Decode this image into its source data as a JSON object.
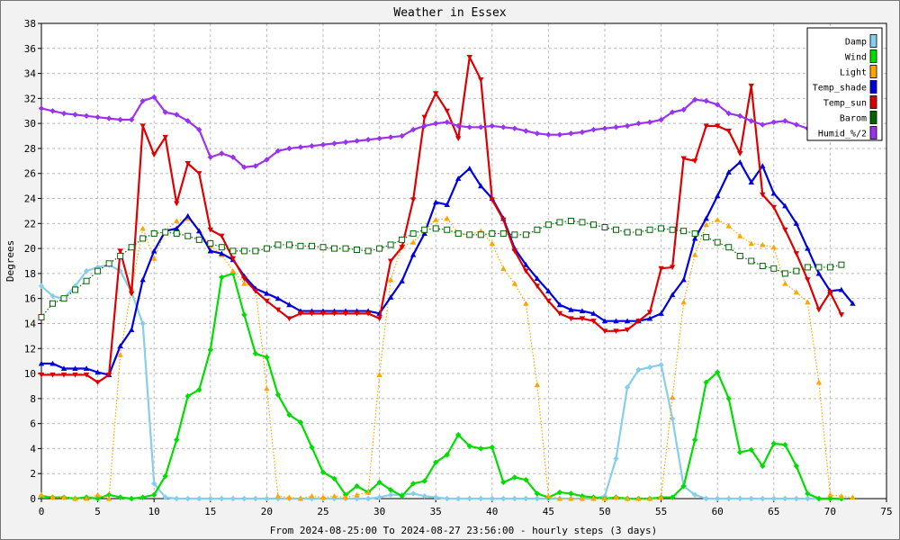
{
  "chart_data": {
    "type": "line",
    "title": "Weather in Essex",
    "xlabel": "From 2024-08-25:00 To 2024-08-27 23:56:00 - hourly steps (3 days)",
    "ylabel": "Degrees",
    "xlim": [
      0,
      75
    ],
    "ylim": [
      0,
      38
    ],
    "x_ticks": [
      0,
      5,
      10,
      15,
      20,
      25,
      30,
      35,
      40,
      45,
      50,
      55,
      60,
      65,
      70,
      75
    ],
    "y_ticks": [
      0,
      2,
      4,
      6,
      8,
      10,
      12,
      14,
      16,
      18,
      20,
      22,
      24,
      26,
      28,
      30,
      32,
      34,
      36,
      38
    ],
    "grid": true,
    "legend_position": "top-right",
    "series": [
      {
        "name": "Damp",
        "color": "#87ceeb",
        "marker": "diamond",
        "style": "solid",
        "values": [
          17.0,
          16.2,
          16.0,
          17.0,
          18.2,
          18.5,
          18.7,
          18.2,
          16.5,
          14.0,
          1.2,
          0.1,
          0,
          0,
          0,
          0,
          0,
          0,
          0,
          0,
          0,
          0,
          0,
          0,
          0,
          0,
          0,
          0,
          0,
          0,
          0.1,
          0.3,
          0.3,
          0.4,
          0.2,
          0.1,
          0,
          0,
          0,
          0,
          0,
          0,
          0,
          0,
          0,
          0,
          0,
          0,
          0,
          0,
          0.2,
          3.2,
          8.9,
          10.3,
          10.5,
          10.7,
          6.4,
          1.0,
          0.3,
          0,
          0,
          0,
          0,
          0,
          0,
          0,
          0,
          0,
          0,
          0,
          0,
          0
        ]
      },
      {
        "name": "Wind",
        "color": "#00dd00",
        "marker": "diamond",
        "style": "solid",
        "values": [
          0.2,
          0.1,
          0.1,
          0,
          0.1,
          0,
          0.3,
          0.1,
          0,
          0.1,
          0.3,
          1.8,
          4.7,
          8.2,
          8.7,
          11.9,
          17.7,
          18.0,
          14.7,
          11.6,
          11.3,
          8.3,
          6.7,
          6.1,
          4.1,
          2.1,
          1.6,
          0.3,
          1.0,
          0.5,
          1.3,
          0.7,
          0.2,
          1.2,
          1.4,
          2.9,
          3.5,
          5.1,
          4.2,
          4.0,
          4.1,
          1.3,
          1.7,
          1.5,
          0.4,
          0.1,
          0.5,
          0.4,
          0.2,
          0.1,
          0,
          0.1,
          0,
          0,
          0,
          0.1,
          0.1,
          1.0,
          4.7,
          9.3,
          10.1,
          8.0,
          3.7,
          3.9,
          2.6,
          4.4,
          4.3,
          2.6,
          0.4,
          0,
          0,
          0
        ]
      },
      {
        "name": "Light",
        "color": "#ffa500",
        "marker": "triangle",
        "style": "dotted",
        "values": [
          0.3,
          0.1,
          0.1,
          0,
          0,
          0.3,
          0,
          11.5,
          16.8,
          21.6,
          19.2,
          21.4,
          22.2,
          22.4,
          21.4,
          20.2,
          19.5,
          18.2,
          17.2,
          16.8,
          8.8,
          0.2,
          0.1,
          0,
          0.2,
          0.1,
          0.2,
          0.1,
          0.3,
          0.5,
          9.9,
          17.5,
          20.2,
          20.5,
          21.4,
          22.3,
          22.4,
          21.2,
          21.1,
          21.4,
          20.4,
          18.4,
          17.2,
          15.6,
          9.1,
          0.2,
          0,
          0,
          0,
          0,
          0,
          0.1,
          0,
          0,
          0,
          0.1,
          8.1,
          15.7,
          19.5,
          21.9,
          22.3,
          21.8,
          21.0,
          20.4,
          20.3,
          20.1,
          17.2,
          16.5,
          15.7,
          9.3,
          0.3,
          0.2,
          0.1
        ]
      },
      {
        "name": "Temp_shade",
        "color": "#0000dd",
        "marker": "triangle",
        "style": "solid",
        "values": [
          10.8,
          10.8,
          10.4,
          10.4,
          10.4,
          10.1,
          9.9,
          12.2,
          13.5,
          17.5,
          19.8,
          21.4,
          21.6,
          22.6,
          21.4,
          19.8,
          19.6,
          19.1,
          17.8,
          16.8,
          16.4,
          16.0,
          15.5,
          15.0,
          15.0,
          15.0,
          15.0,
          15.0,
          15.0,
          15.0,
          14.8,
          16.1,
          17.4,
          19.5,
          21.2,
          23.7,
          23.5,
          25.6,
          26.4,
          25.0,
          24.0,
          22.4,
          20.0,
          18.7,
          17.6,
          16.6,
          15.5,
          15.1,
          15.0,
          14.8,
          14.2,
          14.2,
          14.2,
          14.2,
          14.4,
          14.8,
          16.3,
          17.5,
          20.8,
          22.4,
          24.2,
          26.1,
          26.9,
          25.3,
          26.6,
          24.4,
          23.4,
          22.0,
          20.0,
          18.0,
          16.6,
          16.7,
          15.6
        ]
      },
      {
        "name": "Temp_sun",
        "color": "#dd0000",
        "marker": "down-triangle",
        "style": "solid",
        "values": [
          9.9,
          9.9,
          9.9,
          9.9,
          9.9,
          9.3,
          9.9,
          19.8,
          16.4,
          29.8,
          27.5,
          28.9,
          23.6,
          26.8,
          26.0,
          21.5,
          21.0,
          19.2,
          17.6,
          16.6,
          15.8,
          15.1,
          14.4,
          14.8,
          14.8,
          14.8,
          14.8,
          14.8,
          14.8,
          14.8,
          14.4,
          19.0,
          20.1,
          23.9,
          30.5,
          32.4,
          31.0,
          28.8,
          35.3,
          33.5,
          23.9,
          22.3,
          19.8,
          18.2,
          17.0,
          15.8,
          14.8,
          14.4,
          14.4,
          14.2,
          13.4,
          13.4,
          13.5,
          14.2,
          14.9,
          18.4,
          18.5,
          27.2,
          27.0,
          29.8,
          29.8,
          29.4,
          27.6,
          33.0,
          24.3,
          23.3,
          21.5,
          19.6,
          17.5,
          15.1,
          16.5,
          14.7
        ]
      },
      {
        "name": "Barom",
        "color": "#006400",
        "marker": "open-square",
        "style": "dotted",
        "values": [
          14.5,
          15.6,
          16.0,
          16.7,
          17.4,
          18.2,
          18.8,
          19.4,
          20.1,
          20.8,
          21.2,
          21.3,
          21.2,
          21.0,
          20.7,
          20.4,
          20.1,
          19.8,
          19.8,
          19.8,
          20.0,
          20.3,
          20.3,
          20.2,
          20.2,
          20.1,
          20.0,
          20.0,
          19.9,
          19.8,
          20.0,
          20.3,
          20.7,
          21.2,
          21.5,
          21.6,
          21.5,
          21.2,
          21.1,
          21.1,
          21.2,
          21.2,
          21.1,
          21.1,
          21.5,
          21.9,
          22.1,
          22.2,
          22.1,
          21.9,
          21.7,
          21.5,
          21.3,
          21.3,
          21.5,
          21.6,
          21.5,
          21.4,
          21.2,
          20.9,
          20.5,
          20.1,
          19.4,
          19.0,
          18.6,
          18.4,
          18.0,
          18.2,
          18.5,
          18.5,
          18.5,
          18.7
        ]
      },
      {
        "name": "Humid_%/2",
        "color": "#9933ee",
        "marker": "diamond",
        "style": "solid",
        "values": [
          31.2,
          31.0,
          30.8,
          30.7,
          30.6,
          30.5,
          30.4,
          30.3,
          30.3,
          31.8,
          32.1,
          30.9,
          30.7,
          30.2,
          29.5,
          27.3,
          27.6,
          27.3,
          26.5,
          26.6,
          27.1,
          27.8,
          28.0,
          28.1,
          28.2,
          28.3,
          28.4,
          28.5,
          28.6,
          28.7,
          28.8,
          28.9,
          29.0,
          29.5,
          29.8,
          30.0,
          30.1,
          29.8,
          29.7,
          29.7,
          29.8,
          29.7,
          29.6,
          29.4,
          29.2,
          29.1,
          29.1,
          29.2,
          29.3,
          29.5,
          29.6,
          29.7,
          29.8,
          30.0,
          30.1,
          30.3,
          30.9,
          31.1,
          31.9,
          31.8,
          31.5,
          30.8,
          30.6,
          30.2,
          29.9,
          30.1,
          30.2,
          29.9,
          29.6,
          null,
          null,
          null
        ]
      }
    ]
  }
}
